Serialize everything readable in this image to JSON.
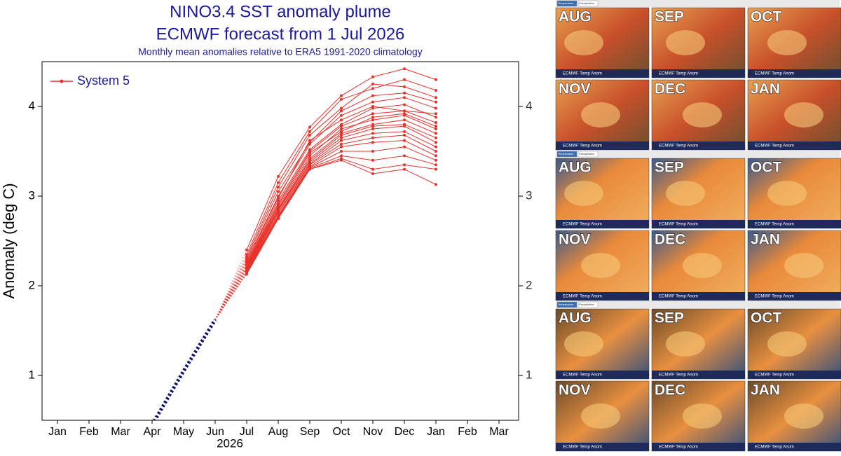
{
  "chart_data": {
    "type": "line",
    "title": "NINO3.4 SST anomaly plume",
    "subtitle": "ECMWF forecast from 1 Jul 2026",
    "note": "Monthly mean anomalies relative to ERA5 1991-2020 climatology",
    "y_label": "Anomaly (deg C)",
    "x_year_label": "2026",
    "categories": [
      "Jan",
      "Feb",
      "Mar",
      "Apr",
      "May",
      "Jun",
      "Jul",
      "Aug",
      "Sep",
      "Oct",
      "Nov",
      "Dec",
      "Jan",
      "Feb",
      "Mar"
    ],
    "ylim": [
      0.5,
      4.5
    ],
    "yticks": [
      1,
      2,
      3,
      4
    ],
    "observed": {
      "color": "#10106e",
      "values": [
        null,
        null,
        null,
        0.45,
        1.05,
        1.62,
        null,
        null,
        null,
        null,
        null,
        null,
        null,
        null,
        null
      ]
    },
    "series": [
      {
        "name": "System 5",
        "color": "#e8302a",
        "members": [
          [
            null,
            null,
            null,
            null,
            null,
            null,
            2.4,
            3.22,
            3.77,
            4.12,
            4.33,
            4.42,
            4.3,
            null,
            null
          ],
          [
            null,
            null,
            null,
            null,
            null,
            null,
            2.35,
            3.15,
            3.72,
            4.08,
            4.2,
            4.3,
            4.18,
            null,
            null
          ],
          [
            null,
            null,
            null,
            null,
            null,
            null,
            2.32,
            3.1,
            3.68,
            3.98,
            4.25,
            4.22,
            4.1,
            null,
            null
          ],
          [
            null,
            null,
            null,
            null,
            null,
            null,
            2.3,
            3.05,
            3.6,
            3.95,
            4.12,
            4.15,
            4.05,
            null,
            null
          ],
          [
            null,
            null,
            null,
            null,
            null,
            null,
            2.28,
            3.0,
            3.58,
            3.9,
            4.05,
            4.1,
            3.98,
            null,
            null
          ],
          [
            null,
            null,
            null,
            null,
            null,
            null,
            2.27,
            2.98,
            3.62,
            3.85,
            4.0,
            3.95,
            3.92,
            null,
            null
          ],
          [
            null,
            null,
            null,
            null,
            null,
            null,
            2.25,
            2.95,
            3.52,
            3.8,
            3.98,
            4.02,
            3.88,
            null,
            null
          ],
          [
            null,
            null,
            null,
            null,
            null,
            null,
            2.24,
            2.92,
            3.5,
            3.78,
            3.92,
            3.95,
            3.82,
            null,
            null
          ],
          [
            null,
            null,
            null,
            null,
            null,
            null,
            2.23,
            2.9,
            3.48,
            3.72,
            3.88,
            3.92,
            3.78,
            null,
            null
          ],
          [
            null,
            null,
            null,
            null,
            null,
            null,
            2.22,
            2.88,
            3.45,
            3.75,
            3.85,
            3.9,
            3.75,
            null,
            null
          ],
          [
            null,
            null,
            null,
            null,
            null,
            null,
            2.21,
            2.86,
            3.42,
            3.7,
            3.8,
            3.85,
            3.7,
            null,
            null
          ],
          [
            null,
            null,
            null,
            null,
            null,
            null,
            2.2,
            2.85,
            3.4,
            3.68,
            3.78,
            3.8,
            3.65,
            null,
            null
          ],
          [
            null,
            null,
            null,
            null,
            null,
            null,
            2.19,
            2.84,
            3.38,
            3.65,
            3.75,
            3.78,
            3.6,
            null,
            null
          ],
          [
            null,
            null,
            null,
            null,
            null,
            null,
            2.18,
            2.82,
            3.36,
            3.62,
            3.7,
            3.72,
            3.55,
            null,
            null
          ],
          [
            null,
            null,
            null,
            null,
            null,
            null,
            2.17,
            2.8,
            3.35,
            3.58,
            3.65,
            3.68,
            3.5,
            null,
            null
          ],
          [
            null,
            null,
            null,
            null,
            null,
            null,
            2.16,
            2.78,
            3.33,
            3.55,
            3.6,
            3.62,
            3.45,
            null,
            null
          ],
          [
            null,
            null,
            null,
            null,
            null,
            null,
            2.15,
            2.77,
            3.32,
            3.5,
            3.5,
            3.55,
            3.4,
            null,
            null
          ],
          [
            null,
            null,
            null,
            null,
            null,
            null,
            2.15,
            2.76,
            3.31,
            3.45,
            3.4,
            3.45,
            3.35,
            null,
            null
          ],
          [
            null,
            null,
            null,
            null,
            null,
            null,
            2.14,
            2.75,
            3.3,
            3.42,
            3.3,
            3.35,
            3.3,
            null,
            null
          ],
          [
            null,
            null,
            null,
            null,
            null,
            null,
            2.13,
            2.75,
            3.3,
            3.4,
            3.25,
            3.3,
            3.13,
            null,
            null
          ]
        ]
      }
    ]
  },
  "map_panels": [
    {
      "tabs": [
        "Temperature",
        "Precipitation"
      ],
      "months": [
        "AUG",
        "SEP",
        "OCT",
        "NOV",
        "DEC",
        "JAN"
      ],
      "caption": "ECMWF Temp Anom"
    },
    {
      "tabs": [
        "Temperature",
        "Precipitation"
      ],
      "months": [
        "AUG",
        "SEP",
        "OCT",
        "NOV",
        "DEC",
        "JAN"
      ],
      "caption": "ECMWF Temp Anom"
    },
    {
      "tabs": [
        "Temperature",
        "Precipitation"
      ],
      "months": [
        "AUG",
        "SEP",
        "OCT",
        "NOV",
        "DEC",
        "JAN"
      ],
      "caption": "ECMWF Temp Anom"
    }
  ]
}
